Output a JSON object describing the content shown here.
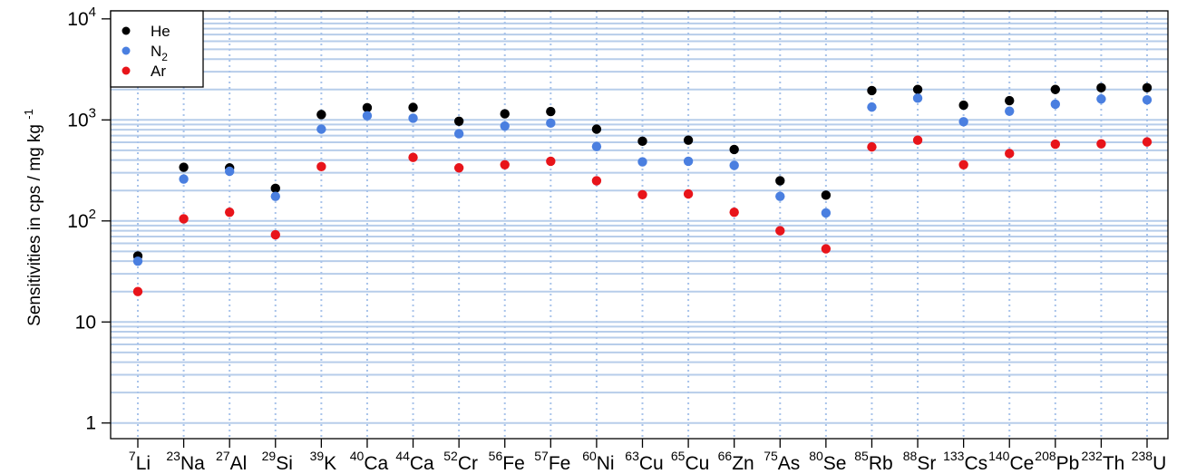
{
  "chart_data": {
    "type": "scatter",
    "title": "",
    "xlabel": "",
    "ylabel": "Sensitivities in cps / mg kg",
    "ylabel_superscript": "-1",
    "yscale": "log",
    "ylim": [
      0.7,
      12000
    ],
    "yticks": [
      {
        "value": 1,
        "label": "1",
        "exp": ""
      },
      {
        "value": 10,
        "label": "10",
        "exp": ""
      },
      {
        "value": 100,
        "label": "10",
        "exp": "2"
      },
      {
        "value": 1000,
        "label": "10",
        "exp": "3"
      },
      {
        "value": 10000,
        "label": "10",
        "exp": "4"
      }
    ],
    "grid": true,
    "legend_position": "top-left",
    "categories": [
      {
        "mass": "7",
        "element": "Li"
      },
      {
        "mass": "23",
        "element": "Na"
      },
      {
        "mass": "27",
        "element": "Al"
      },
      {
        "mass": "29",
        "element": "Si"
      },
      {
        "mass": "39",
        "element": "K"
      },
      {
        "mass": "40",
        "element": "Ca"
      },
      {
        "mass": "44",
        "element": "Ca"
      },
      {
        "mass": "52",
        "element": "Cr"
      },
      {
        "mass": "56",
        "element": "Fe"
      },
      {
        "mass": "57",
        "element": "Fe"
      },
      {
        "mass": "60",
        "element": "Ni"
      },
      {
        "mass": "63",
        "element": "Cu"
      },
      {
        "mass": "65",
        "element": "Cu"
      },
      {
        "mass": "66",
        "element": "Zn"
      },
      {
        "mass": "75",
        "element": "As"
      },
      {
        "mass": "80",
        "element": "Se"
      },
      {
        "mass": "85",
        "element": "Rb"
      },
      {
        "mass": "88",
        "element": "Sr"
      },
      {
        "mass": "133",
        "element": "Cs"
      },
      {
        "mass": "140",
        "element": "Ce"
      },
      {
        "mass": "208",
        "element": "Pb"
      },
      {
        "mass": "232",
        "element": "Th"
      },
      {
        "mass": "238",
        "element": "U"
      }
    ],
    "series": [
      {
        "name": "He",
        "name_base": "He",
        "name_sub": "",
        "color": "#000000",
        "values": [
          45,
          340,
          335,
          210,
          1130,
          1320,
          1330,
          970,
          1150,
          1210,
          810,
          615,
          630,
          510,
          250,
          180,
          1950,
          2000,
          1400,
          1550,
          2000,
          2080,
          2080
        ]
      },
      {
        "name": "N2",
        "name_base": "N",
        "name_sub": "2",
        "color": "#4a7fe0",
        "values": [
          40,
          260,
          310,
          175,
          810,
          1100,
          1040,
          730,
          870,
          930,
          545,
          385,
          390,
          355,
          175,
          120,
          1340,
          1640,
          960,
          1220,
          1430,
          1610,
          1580
        ]
      },
      {
        "name": "Ar",
        "name_base": "Ar",
        "name_sub": "",
        "color": "#e8141a",
        "values": [
          20,
          105,
          122,
          73,
          345,
          null,
          425,
          335,
          360,
          390,
          250,
          182,
          185,
          122,
          80,
          53,
          540,
          630,
          360,
          465,
          575,
          580,
          605
        ]
      }
    ]
  }
}
